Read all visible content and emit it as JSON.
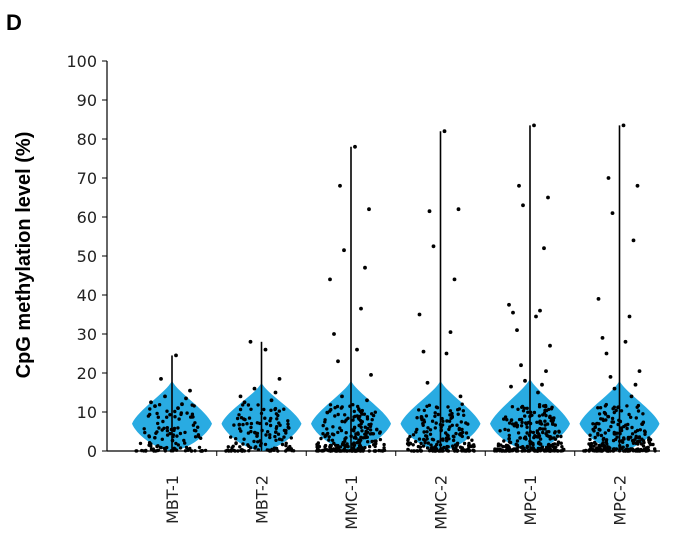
{
  "panel_label": "D",
  "colors": {
    "violin_fill": "#29ABE2",
    "point": "#000000",
    "axis": "#000000",
    "whisker": "#000000"
  },
  "chart_data": {
    "type": "violin",
    "title": "",
    "xlabel": "",
    "ylabel": "CpG methylation level (%)",
    "ylim": [
      0,
      100
    ],
    "y_ticks": [
      0,
      10,
      20,
      30,
      40,
      50,
      60,
      70,
      80,
      90,
      100
    ],
    "y_tick_labels": [
      "0",
      "10",
      "20",
      "30",
      "40",
      "50",
      "60",
      "70",
      "80",
      "90",
      "100"
    ],
    "grid": false,
    "legend": "none",
    "categories": [
      "MBT-1",
      "MBT-2",
      "MMC-1",
      "MMC-2",
      "MPC-1",
      "MPC-2"
    ],
    "violin_top": [
      18,
      17.5,
      18,
      18,
      18.5,
      18
    ],
    "violin_widest_at": [
      7,
      7,
      7,
      7,
      7,
      7
    ],
    "max": [
      24.5,
      28,
      78,
      82,
      83.5,
      83.5
    ],
    "outliers": [
      [
        24.5,
        18.5,
        15.5,
        14,
        13.5,
        12.5,
        12,
        11.5,
        11
      ],
      [
        26,
        28,
        18.5,
        16,
        15,
        14,
        13,
        12.5
      ],
      [
        78,
        68,
        62,
        51.5,
        47,
        44,
        36.5,
        30,
        26,
        23,
        19.5,
        14,
        13
      ],
      [
        82,
        61.5,
        62,
        52.5,
        44,
        35,
        30.5,
        25.5,
        25,
        17.5,
        14
      ],
      [
        83.5,
        68,
        65,
        63,
        52,
        37.5,
        36,
        35.5,
        34.5,
        31,
        27,
        22,
        20.5,
        18,
        17,
        16.5,
        15
      ],
      [
        83.5,
        70,
        68,
        61,
        54,
        39,
        34.5,
        29,
        28,
        25,
        20.5,
        19,
        17,
        16,
        14
      ]
    ],
    "dense_points_range": [
      0,
      12
    ]
  }
}
